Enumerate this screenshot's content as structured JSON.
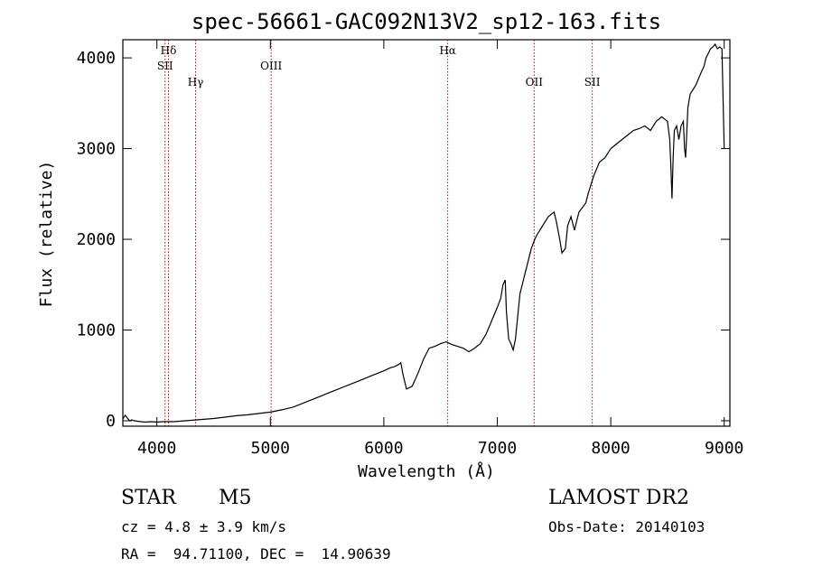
{
  "chart_data": {
    "type": "line",
    "title": "spec-56661-GAC092N13V2_sp12-163.fits",
    "xlabel": "Wavelength (Å)",
    "ylabel": "Flux (relative)",
    "xlim": [
      3700,
      9050
    ],
    "ylim": [
      -60,
      4200
    ],
    "xticks": [
      4000,
      5000,
      6000,
      7000,
      8000,
      9000
    ],
    "yticks": [
      0,
      1000,
      2000,
      3000,
      4000
    ],
    "grid": false,
    "spectrum_color": "#000000",
    "line_marker_color": "#cc0000",
    "series": [
      {
        "x": [
          3700,
          3720,
          3740,
          3760,
          3780,
          3800,
          3830,
          3860,
          3900,
          3950,
          4000,
          4050,
          4100,
          4150,
          4200,
          4250,
          4300,
          4350,
          4400,
          4450,
          4500,
          4600,
          4700,
          4800,
          4900,
          5000,
          5100,
          5200,
          5300,
          5400,
          5500,
          5600,
          5700,
          5800,
          5900,
          6000,
          6050,
          6100,
          6130,
          6150,
          6170,
          6200,
          6250,
          6300,
          6350,
          6400,
          6450,
          6500,
          6550,
          6600,
          6650,
          6700,
          6750,
          6800,
          6850,
          6900,
          6950,
          7000,
          7030,
          7050,
          7070,
          7080,
          7100,
          7120,
          7140,
          7160,
          7180,
          7200,
          7250,
          7300,
          7330,
          7350,
          7400,
          7450,
          7500,
          7520,
          7550,
          7570,
          7600,
          7620,
          7650,
          7680,
          7700,
          7720,
          7750,
          7780,
          7800,
          7850,
          7900,
          7950,
          8000,
          8050,
          8100,
          8150,
          8200,
          8250,
          8300,
          8350,
          8400,
          8450,
          8500,
          8520,
          8530,
          8540,
          8550,
          8560,
          8580,
          8600,
          8620,
          8640,
          8650,
          8660,
          8680,
          8700,
          8750,
          8800,
          8820,
          8840,
          8860,
          8880,
          8900,
          8920,
          8940,
          8960,
          8980,
          9000
        ],
        "y": [
          20,
          60,
          30,
          0,
          10,
          0,
          -5,
          -10,
          -15,
          -10,
          -15,
          -10,
          -10,
          -10,
          -5,
          0,
          5,
          10,
          15,
          20,
          25,
          40,
          55,
          65,
          80,
          95,
          120,
          150,
          200,
          250,
          300,
          350,
          400,
          450,
          500,
          550,
          580,
          600,
          620,
          640,
          500,
          350,
          380,
          520,
          680,
          800,
          820,
          850,
          870,
          840,
          820,
          800,
          760,
          800,
          850,
          950,
          1100,
          1250,
          1350,
          1500,
          1550,
          1200,
          900,
          850,
          780,
          900,
          1150,
          1400,
          1650,
          1900,
          2000,
          2050,
          2150,
          2250,
          2300,
          2200,
          2000,
          1850,
          1900,
          2150,
          2250,
          2100,
          2200,
          2300,
          2350,
          2400,
          2500,
          2700,
          2850,
          2900,
          3000,
          3050,
          3100,
          3150,
          3200,
          3220,
          3250,
          3200,
          3300,
          3350,
          3300,
          3100,
          2800,
          2450,
          2900,
          3200,
          3250,
          3100,
          3250,
          3300,
          3000,
          2900,
          3450,
          3600,
          3700,
          3850,
          3900,
          4000,
          4050,
          4100,
          4120,
          4150,
          4100,
          4120,
          4100,
          3000
        ]
      }
    ],
    "line_markers": [
      {
        "label": "Hδ",
        "x": 4102,
        "row": 0
      },
      {
        "label": "SII",
        "x": 4072,
        "row": 1
      },
      {
        "label": "Hγ",
        "x": 4341,
        "row": 2
      },
      {
        "label": "OIII",
        "x": 5007,
        "row": 1
      },
      {
        "label": "Hα",
        "x": 6563,
        "row": 0
      },
      {
        "label": "OII",
        "x": 7325,
        "row": 2
      },
      {
        "label": "SII",
        "x": 7837,
        "row": 2
      }
    ]
  },
  "info": {
    "object_class": "STAR",
    "subclass": "M5",
    "survey": "LAMOST DR2",
    "redshift": "cz = 4.8 ± 3.9 km/s",
    "obs_date": "Obs-Date: 20140103",
    "coords": "RA =  94.71100, DEC =  14.90639"
  }
}
